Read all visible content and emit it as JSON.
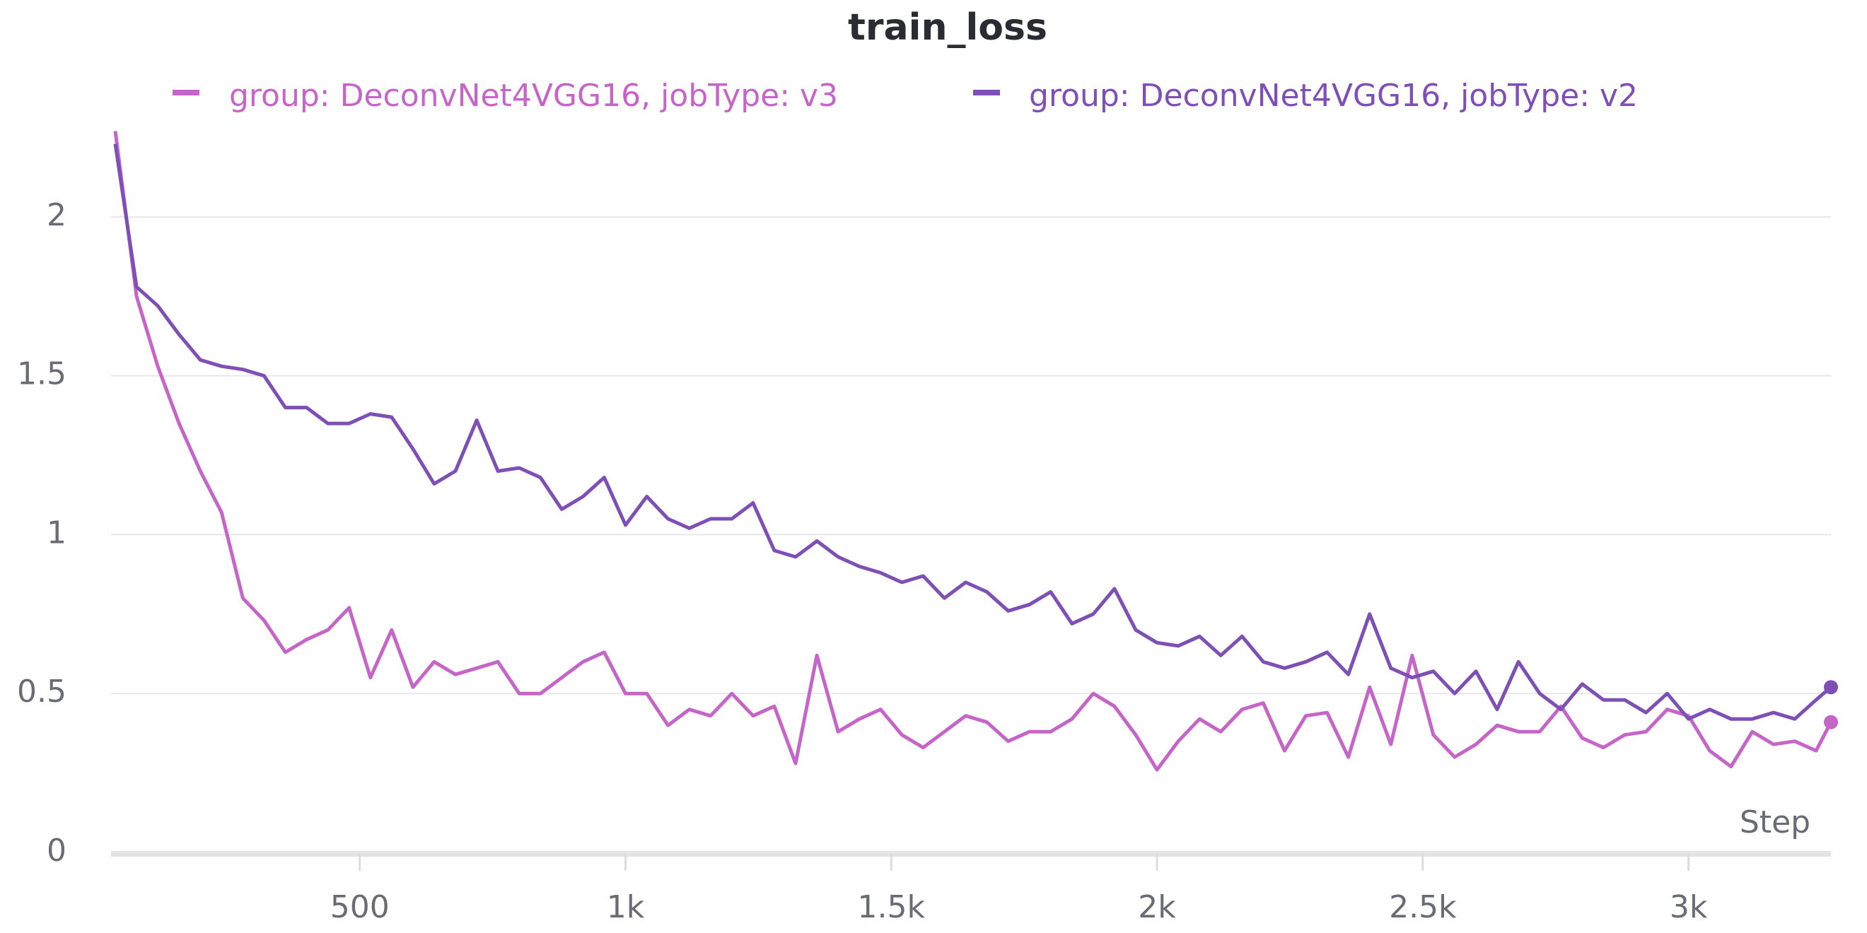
{
  "chart_data": {
    "type": "line",
    "title": "train_loss",
    "xlabel": "Step",
    "x": [
      40,
      80,
      120,
      160,
      200,
      240,
      280,
      320,
      360,
      400,
      440,
      480,
      520,
      560,
      600,
      640,
      680,
      720,
      760,
      800,
      840,
      880,
      920,
      960,
      1000,
      1040,
      1080,
      1120,
      1160,
      1200,
      1240,
      1280,
      1320,
      1360,
      1400,
      1440,
      1480,
      1520,
      1560,
      1600,
      1640,
      1680,
      1720,
      1760,
      1800,
      1840,
      1880,
      1920,
      1960,
      2000,
      2040,
      2080,
      2120,
      2160,
      2200,
      2240,
      2280,
      2320,
      2360,
      2400,
      2440,
      2480,
      2520,
      2560,
      2600,
      2640,
      2680,
      2720,
      2760,
      2800,
      2840,
      2880,
      2920,
      2960,
      3000,
      3040,
      3080,
      3120,
      3160,
      3200,
      3240,
      3268
    ],
    "series": [
      {
        "name": "group: DeconvNet4VGG16, jobType: v3",
        "color": "#c565c7",
        "values": [
          2.27,
          1.75,
          1.53,
          1.35,
          1.2,
          1.07,
          0.8,
          0.73,
          0.63,
          0.67,
          0.7,
          0.77,
          0.55,
          0.7,
          0.52,
          0.6,
          0.56,
          0.58,
          0.6,
          0.5,
          0.5,
          0.55,
          0.6,
          0.63,
          0.5,
          0.5,
          0.4,
          0.45,
          0.43,
          0.5,
          0.43,
          0.46,
          0.28,
          0.62,
          0.38,
          0.42,
          0.45,
          0.37,
          0.33,
          0.38,
          0.43,
          0.41,
          0.35,
          0.38,
          0.38,
          0.42,
          0.5,
          0.46,
          0.37,
          0.26,
          0.35,
          0.42,
          0.38,
          0.45,
          0.47,
          0.32,
          0.43,
          0.44,
          0.3,
          0.52,
          0.34,
          0.62,
          0.37,
          0.3,
          0.34,
          0.4,
          0.38,
          0.38,
          0.46,
          0.36,
          0.33,
          0.37,
          0.38,
          0.45,
          0.43,
          0.32,
          0.27,
          0.38,
          0.34,
          0.35,
          0.32,
          0.41
        ]
      },
      {
        "name": "group: DeconvNet4VGG16, jobType: v2",
        "color": "#7e4fb4",
        "values": [
          2.23,
          1.78,
          1.72,
          1.63,
          1.55,
          1.53,
          1.52,
          1.5,
          1.4,
          1.4,
          1.35,
          1.35,
          1.38,
          1.37,
          1.27,
          1.16,
          1.2,
          1.36,
          1.2,
          1.21,
          1.18,
          1.08,
          1.12,
          1.18,
          1.03,
          1.12,
          1.05,
          1.02,
          1.05,
          1.05,
          1.1,
          0.95,
          0.93,
          0.98,
          0.93,
          0.9,
          0.88,
          0.85,
          0.87,
          0.8,
          0.85,
          0.82,
          0.76,
          0.78,
          0.82,
          0.72,
          0.75,
          0.83,
          0.7,
          0.66,
          0.65,
          0.68,
          0.62,
          0.68,
          0.6,
          0.58,
          0.6,
          0.63,
          0.56,
          0.75,
          0.58,
          0.55,
          0.57,
          0.5,
          0.57,
          0.45,
          0.6,
          0.5,
          0.45,
          0.53,
          0.48,
          0.48,
          0.44,
          0.5,
          0.42,
          0.45,
          0.42,
          0.42,
          0.44,
          0.42,
          0.48,
          0.52
        ]
      }
    ],
    "xlim": [
      32,
      3268
    ],
    "xticks": [
      500,
      {
        "value": 1000,
        "label": "1k"
      },
      {
        "value": 1500,
        "label": "1.5k"
      },
      {
        "value": 2000,
        "label": "2k"
      },
      {
        "value": 2500,
        "label": "2.5k"
      },
      {
        "value": 3000,
        "label": "3k"
      }
    ],
    "ylim": [
      0,
      2.3
    ],
    "yticks": [
      0,
      0.5,
      1,
      1.5,
      2
    ],
    "grid": true,
    "legend": "top"
  }
}
